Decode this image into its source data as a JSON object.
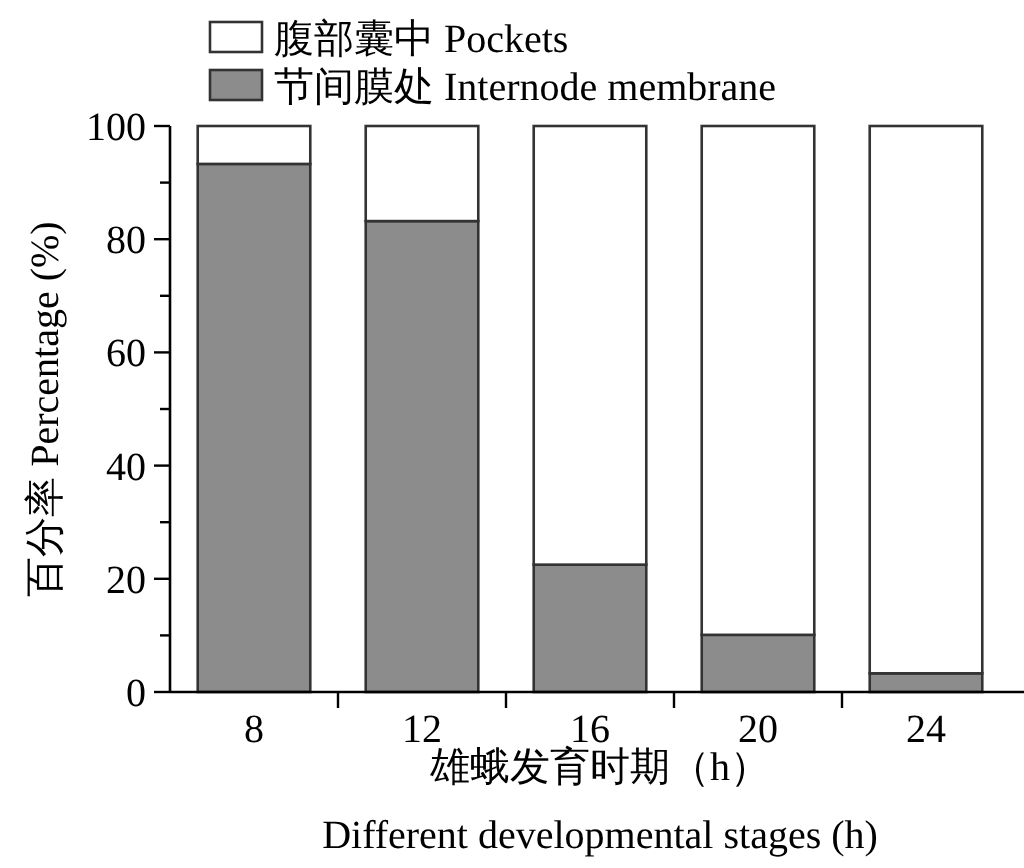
{
  "chart_data": {
    "type": "bar",
    "stacked": true,
    "legend": "top left",
    "categories": [
      "8",
      "12",
      "16",
      "20",
      "24"
    ],
    "series": [
      {
        "name": "节间膜处 Internode membrane",
        "color": "#8c8c8c",
        "values": [
          93.3,
          83.2,
          22.5,
          10.1,
          3.3
        ]
      },
      {
        "name": "腹部囊中 Pockets",
        "color": "#ffffff",
        "values": [
          6.7,
          16.8,
          77.5,
          89.9,
          96.7
        ]
      }
    ],
    "ylim": [
      0,
      100
    ],
    "yticks": [
      0,
      {
        "value": 10,
        "label": null
      },
      20,
      {
        "value": 30,
        "label": null
      },
      40,
      {
        "value": 50,
        "label": null
      },
      60,
      {
        "value": 70,
        "label": null
      },
      80,
      {
        "value": 90,
        "label": null
      },
      100
    ],
    "ylabel": "百分率 Percentage (%)",
    "xlabel": "雄蛾发育时期（h）\nDifferent developmental stages (h)"
  }
}
